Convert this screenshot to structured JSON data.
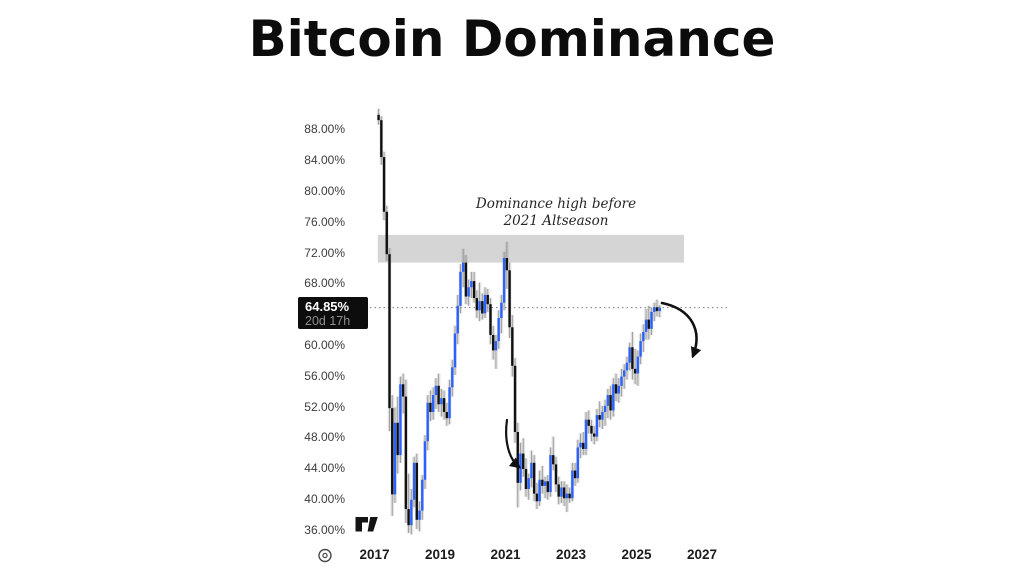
{
  "title": "Bitcoin Dominance",
  "price_label": {
    "value": "64.85%",
    "countdown": "20d 17h"
  },
  "annotation": {
    "line1": "Dominance high before",
    "line2": "2021 Altseason"
  },
  "colors": {
    "up_candle": "#2962FF",
    "down_candle": "#111111",
    "wick": "#989898",
    "candle_shadow": "rgba(130,130,130,0.22)",
    "zone": "#d5d5d5",
    "dotted_line": "#7f7f7f",
    "price_label_bg": "#0d0d0d",
    "price_label_text": "#ffffff",
    "price_label_countdown": "#8f8f8f",
    "arrow": "#111111"
  },
  "chart_data": {
    "type": "candlestick",
    "title": "Bitcoin Dominance",
    "grid": false,
    "x_axis": {
      "ticks": [
        "2017",
        "2019",
        "2021",
        "2023",
        "2025",
        "2027"
      ],
      "range_years": [
        2016.8,
        2027.8
      ]
    },
    "y_axis": {
      "unit": "%",
      "ticks": [
        "88.00%",
        "84.00%",
        "80.00%",
        "76.00%",
        "72.00%",
        "68.00%",
        "60.00%",
        "56.00%",
        "52.00%",
        "48.00%",
        "44.00%",
        "40.00%",
        "36.00%"
      ],
      "range_pct": [
        34.5,
        91.5
      ]
    },
    "current_price_pct": 64.85,
    "highlight_zone": {
      "from_pct": 70.7,
      "to_pct": 74.3,
      "x_start_year": 2017.1,
      "x_end_year": 2026.45,
      "label": "Dominance high before 2021 Altseason"
    },
    "series_start": "2017-02",
    "ohlc_monthly": [
      [
        89.9,
        90.7,
        88.6,
        89.2
      ],
      [
        89.2,
        89.7,
        83.4,
        84.4
      ],
      [
        84.4,
        85.1,
        76.2,
        77.3
      ],
      [
        77.3,
        78.1,
        70.9,
        71.8
      ],
      [
        71.8,
        72.6,
        48.8,
        51.8
      ],
      [
        51.8,
        53.5,
        37.8,
        40.6
      ],
      [
        40.6,
        51.9,
        39.5,
        49.9
      ],
      [
        49.9,
        53.3,
        43.3,
        45.7
      ],
      [
        45.7,
        55.9,
        44.7,
        54.9
      ],
      [
        54.9,
        56.3,
        51.1,
        53.3
      ],
      [
        53.3,
        55.5,
        36.9,
        38.7
      ],
      [
        38.7,
        43.3,
        35.6,
        36.6
      ],
      [
        36.6,
        41.3,
        35.4,
        39.9
      ],
      [
        39.9,
        45.5,
        38.9,
        44.7
      ],
      [
        44.7,
        45.9,
        36.1,
        37.3
      ],
      [
        37.3,
        39.7,
        35.8,
        38.5
      ],
      [
        38.5,
        43.1,
        37.3,
        42.5
      ],
      [
        42.5,
        48.3,
        41.3,
        47.5
      ],
      [
        47.5,
        53.5,
        46.3,
        52.5
      ],
      [
        52.5,
        54.1,
        50.1,
        51.3
      ],
      [
        51.3,
        54.5,
        50.3,
        53.5
      ],
      [
        53.5,
        55.7,
        51.7,
        54.7
      ],
      [
        54.7,
        56.3,
        51.3,
        52.3
      ],
      [
        52.3,
        54.3,
        50.7,
        53.1
      ],
      [
        53.1,
        54.1,
        50.3,
        51.3
      ],
      [
        51.3,
        52.5,
        49.5,
        50.5
      ],
      [
        50.5,
        55.5,
        49.7,
        54.5
      ],
      [
        54.5,
        58.1,
        53.3,
        57.1
      ],
      [
        57.1,
        62.5,
        56.1,
        61.5
      ],
      [
        61.5,
        66.5,
        60.1,
        65.1
      ],
      [
        65.1,
        70.5,
        64.1,
        69.5
      ],
      [
        69.5,
        72.5,
        67.5,
        70.7
      ],
      [
        70.7,
        71.7,
        65.3,
        66.3
      ],
      [
        66.3,
        68.5,
        65.1,
        67.5
      ],
      [
        67.5,
        69.5,
        66.1,
        68.3
      ],
      [
        68.3,
        69.5,
        65.5,
        66.1
      ],
      [
        66.1,
        67.1,
        63.5,
        64.5
      ],
      [
        64.5,
        68.1,
        63.1,
        65.7
      ],
      [
        65.7,
        66.7,
        63.3,
        64.1
      ],
      [
        64.1,
        67.5,
        63.5,
        66.5
      ],
      [
        66.5,
        67.3,
        64.3,
        65.3
      ],
      [
        65.3,
        66.1,
        60.1,
        61.3
      ],
      [
        61.3,
        62.5,
        58.1,
        59.3
      ],
      [
        59.3,
        61.3,
        56.9,
        60.5
      ],
      [
        60.5,
        64.5,
        59.5,
        63.5
      ],
      [
        63.5,
        66.5,
        61.5,
        65.5
      ],
      [
        65.5,
        72.1,
        64.5,
        71.3
      ],
      [
        71.3,
        73.4,
        67.3,
        69.7
      ],
      [
        69.7,
        70.7,
        60.9,
        62.3
      ],
      [
        62.3,
        63.9,
        55.9,
        57.3
      ],
      [
        57.3,
        58.3,
        47.3,
        48.7
      ],
      [
        48.7,
        49.9,
        38.9,
        42.1
      ],
      [
        42.1,
        47.3,
        41.1,
        45.9
      ],
      [
        45.9,
        47.9,
        42.9,
        43.9
      ],
      [
        43.9,
        45.3,
        40.3,
        41.3
      ],
      [
        41.3,
        43.3,
        39.9,
        42.7
      ],
      [
        42.7,
        46.3,
        41.5,
        44.7
      ],
      [
        44.7,
        45.7,
        39.7,
        40.7
      ],
      [
        40.7,
        42.1,
        38.7,
        39.7
      ],
      [
        39.7,
        43.7,
        39.1,
        42.5
      ],
      [
        42.5,
        44.3,
        40.7,
        41.7
      ],
      [
        41.7,
        42.9,
        40.1,
        42.3
      ],
      [
        42.3,
        43.1,
        39.9,
        40.9
      ],
      [
        40.9,
        46.7,
        40.3,
        45.7
      ],
      [
        45.7,
        48.1,
        43.7,
        44.5
      ],
      [
        44.5,
        45.5,
        40.9,
        41.9
      ],
      [
        41.9,
        42.9,
        39.3,
        40.3
      ],
      [
        40.3,
        42.3,
        39.5,
        41.5
      ],
      [
        41.5,
        42.3,
        39.1,
        40.1
      ],
      [
        40.1,
        41.9,
        38.3,
        40.7
      ],
      [
        40.7,
        41.5,
        39.5,
        40.1
      ],
      [
        40.1,
        44.7,
        39.7,
        43.7
      ],
      [
        43.7,
        44.7,
        41.7,
        42.7
      ],
      [
        42.7,
        47.7,
        42.1,
        46.7
      ],
      [
        46.7,
        48.5,
        45.3,
        47.3
      ],
      [
        47.3,
        48.7,
        45.7,
        46.5
      ],
      [
        46.5,
        51.3,
        45.7,
        50.3
      ],
      [
        50.3,
        51.5,
        48.5,
        49.5
      ],
      [
        49.5,
        50.3,
        47.5,
        48.5
      ],
      [
        48.5,
        49.5,
        47.1,
        48.1
      ],
      [
        48.1,
        51.7,
        47.5,
        50.9
      ],
      [
        50.9,
        52.7,
        49.3,
        50.3
      ],
      [
        50.3,
        52.1,
        49.1,
        51.3
      ],
      [
        51.3,
        52.9,
        49.5,
        52.1
      ],
      [
        52.1,
        54.3,
        50.5,
        53.5
      ],
      [
        53.5,
        54.7,
        50.3,
        51.5
      ],
      [
        51.5,
        55.7,
        50.7,
        54.9
      ],
      [
        54.9,
        56.3,
        52.7,
        53.7
      ],
      [
        53.7,
        55.7,
        52.5,
        54.7
      ],
      [
        54.7,
        56.9,
        53.3,
        55.9
      ],
      [
        55.9,
        57.5,
        54.3,
        56.7
      ],
      [
        56.7,
        58.5,
        55.5,
        57.7
      ],
      [
        57.7,
        60.3,
        56.7,
        59.7
      ],
      [
        59.7,
        61.7,
        55.5,
        56.9
      ],
      [
        56.9,
        59.5,
        54.9,
        56.3
      ],
      [
        56.3,
        59.3,
        54.7,
        58.5
      ],
      [
        58.5,
        61.5,
        57.5,
        60.5
      ],
      [
        60.5,
        62.7,
        59.1,
        61.7
      ],
      [
        61.7,
        64.7,
        60.7,
        63.3
      ],
      [
        63.3,
        65.1,
        60.7,
        62.1
      ],
      [
        62.1,
        64.9,
        61.3,
        64.3
      ],
      [
        64.3,
        65.5,
        63.1,
        64.9
      ],
      [
        64.9,
        65.9,
        63.7,
        64.4
      ],
      [
        64.4,
        65.2,
        63.6,
        64.85
      ]
    ]
  }
}
